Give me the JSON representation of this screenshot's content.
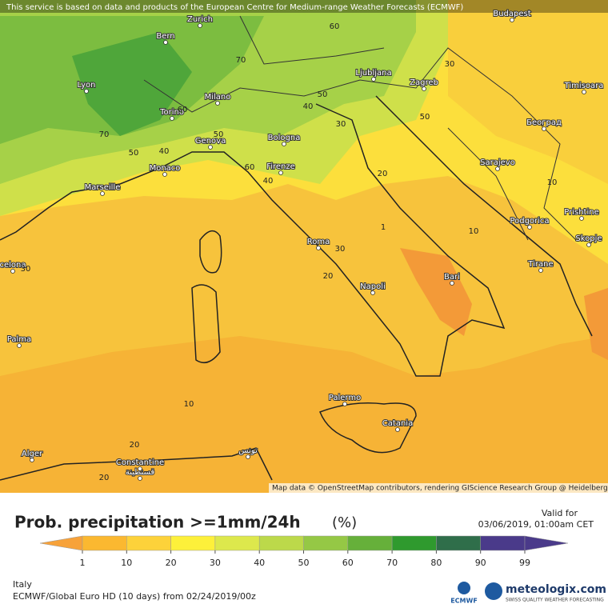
{
  "attribution": "This service is based on data and products of the European Centre for Medium-range Weather Forecasts (ECMWF)",
  "cities": [
    "Budapest",
    "Zurich",
    "Bern",
    "Lyon",
    "Milano",
    "Torino",
    "Ljubljana",
    "Zagreb",
    "Timisoara",
    "Београд",
    "Genova",
    "Bologna",
    "Monaco",
    "Marseille",
    "Firenze",
    "Sarajevo",
    "Podgorica",
    "Prishtine",
    "Skopje",
    "Roma",
    "Tirane",
    "Bari",
    "Napoli",
    "celona",
    "Palma",
    "Palermo",
    "Catania",
    "Alger",
    "Constantine",
    "قسنطينة",
    "تونس"
  ],
  "contour_labels": [
    60,
    70,
    50,
    40,
    30,
    70,
    60,
    50,
    40,
    50,
    60,
    40,
    30,
    20,
    50,
    10,
    10,
    1,
    30,
    20,
    10,
    20,
    20,
    30
  ],
  "map_credit": "Map data © OpenStreetMap contributors, rendering GIScience Research Group @ Heidelberg University",
  "title": "Prob. precipitation >=1mm/24h",
  "unit": "(%)",
  "valid_label": "Valid for",
  "valid_time": "03/06/2019, 01:00am CET",
  "legend": {
    "ticks": [
      1,
      10,
      20,
      30,
      40,
      50,
      60,
      70,
      80,
      90,
      99
    ],
    "colors": [
      "#f7a23a",
      "#fbb830",
      "#fdd23a",
      "#fdf03a",
      "#dde84c",
      "#bcd94a",
      "#95c845",
      "#66b03a",
      "#2f9a2e",
      "#2f6e4a",
      "#4a3a8a"
    ]
  },
  "region": "Italy",
  "model": "ECMWF/Global Euro HD (10 days) from 02/24/2019/00z",
  "ecmwf_logo": "ECMWF",
  "brand": "meteologix.com",
  "tagline": "SWISS QUALITY WEATHER FORECASTING"
}
